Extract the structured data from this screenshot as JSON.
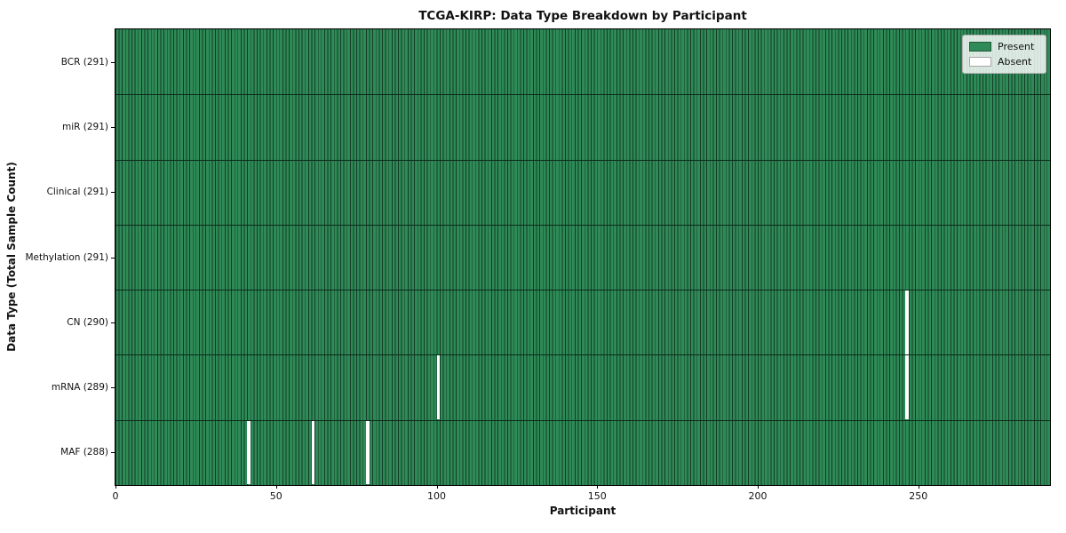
{
  "chart_data": {
    "type": "heatmap",
    "title": "TCGA-KIRP: Data Type Breakdown by Participant",
    "xlabel": "Participant",
    "ylabel": "Data Type (Total Sample Count)",
    "xlim": [
      0,
      291
    ],
    "total_participants": 291,
    "x_ticks": [
      0,
      50,
      100,
      150,
      200,
      250
    ],
    "grid": false,
    "legend_position": "upper right",
    "legend": [
      {
        "label": "Present",
        "color": "#2e8b57"
      },
      {
        "label": "Absent",
        "color": "#ffffff"
      }
    ],
    "rows": [
      {
        "label": "BCR (291)",
        "data_type": "BCR",
        "present_count": 291,
        "absent_participants": []
      },
      {
        "label": "miR (291)",
        "data_type": "miR",
        "present_count": 291,
        "absent_participants": []
      },
      {
        "label": "Clinical (291)",
        "data_type": "Clinical",
        "present_count": 291,
        "absent_participants": []
      },
      {
        "label": "Methylation (291)",
        "data_type": "Methylation",
        "present_count": 291,
        "absent_participants": []
      },
      {
        "label": "CN (290)",
        "data_type": "CN",
        "present_count": 290,
        "absent_participants": [
          246
        ]
      },
      {
        "label": "mRNA (289)",
        "data_type": "mRNA",
        "present_count": 289,
        "absent_participants": [
          100,
          246
        ]
      },
      {
        "label": "MAF (288)",
        "data_type": "MAF",
        "present_count": 288,
        "absent_participants": [
          41,
          61,
          78
        ]
      }
    ]
  },
  "colors": {
    "bar_present": "#2e8b57",
    "bar_absent": "#ffffff",
    "bar_edge": "#143b26",
    "row_separator": "#0c2a1a",
    "plot_border": "#000000",
    "legend_background": "rgba(255,255,255,0.82)",
    "legend_border": "#b3b3b3",
    "text": "#111111"
  }
}
